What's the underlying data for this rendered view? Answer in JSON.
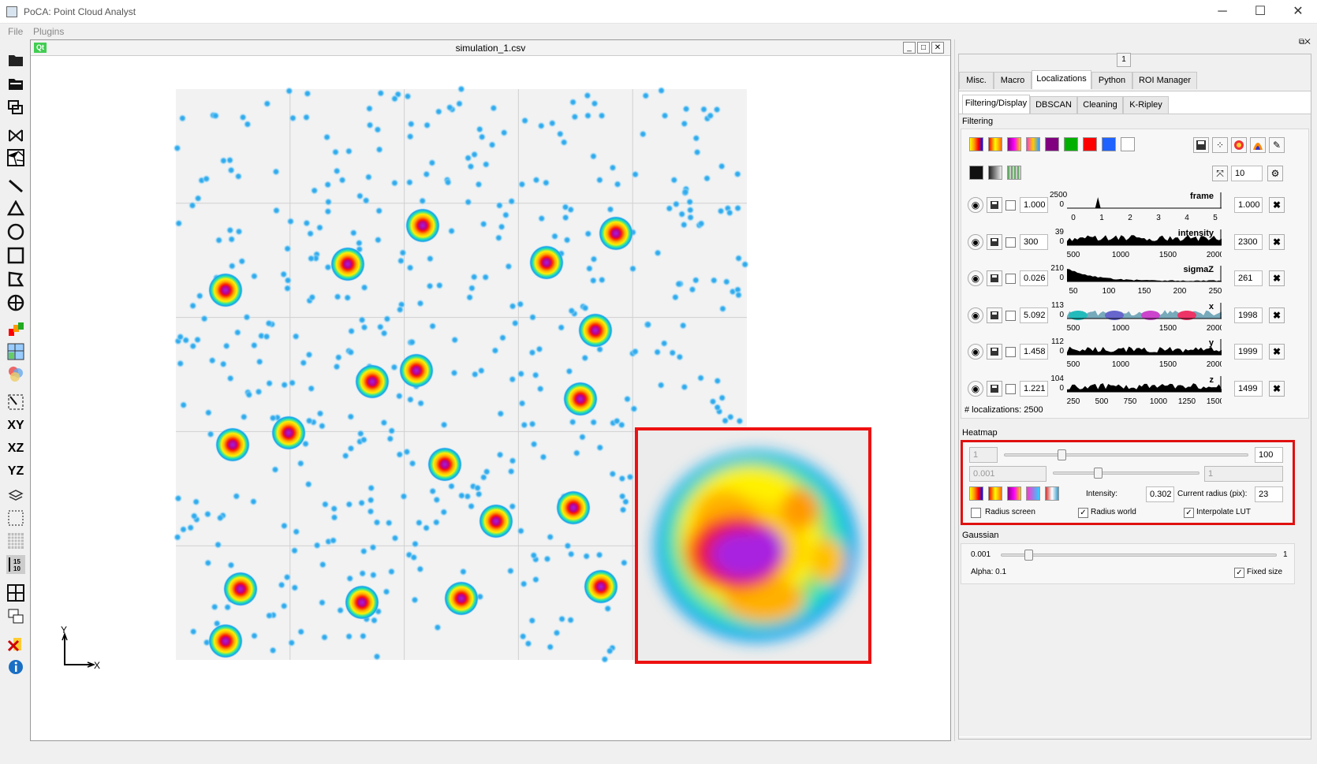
{
  "app": {
    "title": "PoCA: Point Cloud Analyst",
    "minimize": "─",
    "maximize": "☐",
    "close": "✕"
  },
  "menu": [
    "File",
    "Plugins"
  ],
  "subwindow": {
    "title": "simulation_1.csv",
    "badge": "Qt"
  },
  "axes": {
    "y": "Y",
    "x": "X"
  },
  "dock": {
    "tab_number": "1",
    "tabs": [
      "Misc.",
      "Macro",
      "Localizations",
      "Python",
      "ROI Manager"
    ],
    "active_tab": "Localizations",
    "subtabs": [
      "Filtering/Display",
      "DBSCAN",
      "Cleaning",
      "K-Ripley"
    ],
    "active_subtab": "Filtering/Display",
    "filtering_label": "Filtering",
    "lut_colors": [
      "#ffd400",
      "#ff9900",
      "#cc33aa",
      "#ff66cc",
      "#800080",
      "#00b000",
      "#ff0000",
      "#1e62ff",
      "#ffffff"
    ],
    "point_size": "10",
    "filters": [
      {
        "min": "1.000",
        "max": "1.000",
        "ymax": "2500",
        "ymin": "0",
        "name": "frame",
        "ticks": [
          "0",
          "1",
          "2",
          "3",
          "4",
          "5"
        ],
        "color": "#000000"
      },
      {
        "min": "300",
        "max": "2300",
        "ymax": "39",
        "ymin": "0",
        "name": "intensity",
        "ticks": [
          "500",
          "1000",
          "1500",
          "2000"
        ],
        "color": "#000000"
      },
      {
        "min": "0.026",
        "max": "261",
        "ymax": "210",
        "ymin": "0",
        "name": "sigmaZ",
        "ticks": [
          "50",
          "100",
          "150",
          "200",
          "250"
        ],
        "color": "#000000"
      },
      {
        "min": "5.092",
        "max": "1998",
        "ymax": "113",
        "ymin": "0",
        "name": "x",
        "ticks": [
          "500",
          "1000",
          "1500",
          "2000"
        ],
        "color": "multi"
      },
      {
        "min": "1.458",
        "max": "1999",
        "ymax": "112",
        "ymin": "0",
        "name": "y",
        "ticks": [
          "500",
          "1000",
          "1500",
          "2000"
        ],
        "color": "#000000"
      },
      {
        "min": "1.221",
        "max": "1499",
        "ymax": "104",
        "ymin": "0",
        "name": "z",
        "ticks": [
          "250",
          "500",
          "750",
          "1000",
          "1250",
          "1500"
        ],
        "color": "#000000"
      }
    ],
    "localizations": "# localizations: 2500",
    "heatmap": {
      "label": "Heatmap",
      "min_value": "1",
      "max_value": "100",
      "low_value": "0.001",
      "high_value": "1",
      "intensity_label": "Intensity:",
      "intensity": "0.302",
      "radius_label": "Current radius (pix):",
      "radius": "23",
      "radius_screen": "Radius screen",
      "radius_world": "Radius world",
      "interpolate_lut": "Interpolate LUT",
      "radius_screen_checked": false,
      "radius_world_checked": true,
      "interpolate_lut_checked": true
    },
    "gaussian": {
      "label": "Gaussian",
      "min": "0.001",
      "max": "1",
      "alpha": "Alpha: 0.1",
      "fixed_size": "Fixed size",
      "fixed_size_checked": true
    }
  }
}
